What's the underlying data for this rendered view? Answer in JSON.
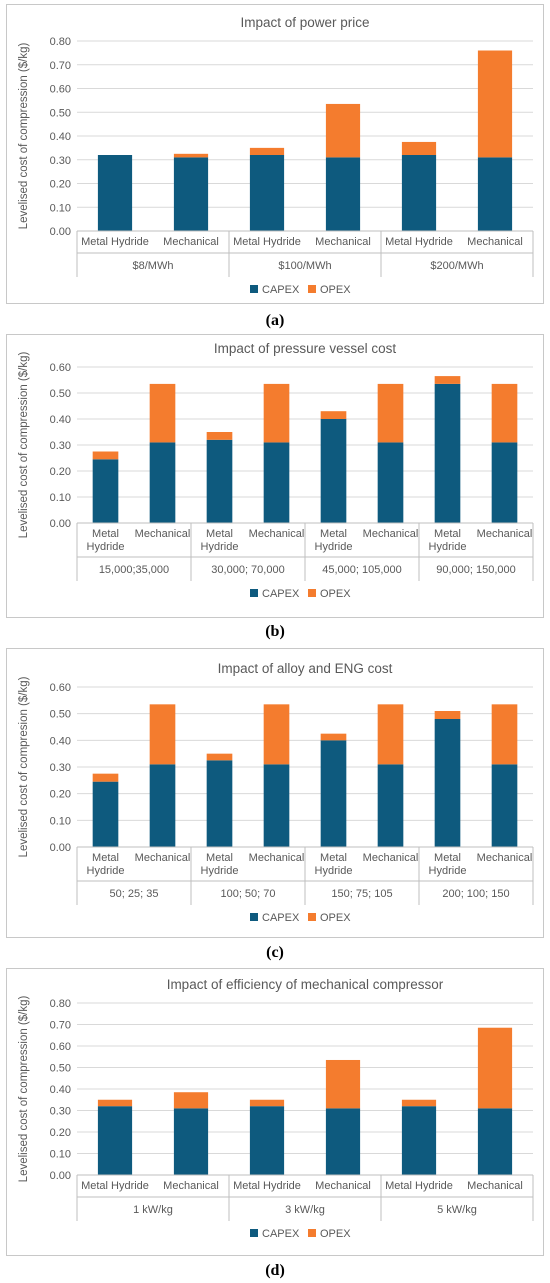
{
  "legend_labels": [
    "CAPEX",
    "OPEX"
  ],
  "colors": {
    "capex": "#0e5a7e",
    "opex": "#f47c2e",
    "axis_text": "#595959",
    "grid": "#d9d9d9"
  },
  "captions": [
    "(a)",
    "(b)",
    "(c)",
    "(d)"
  ],
  "chart_data": [
    {
      "type": "bar",
      "stacked": true,
      "title": "Impact of power price",
      "ylabel": "Levelised cost of compression ($/kg)",
      "ylim": [
        0,
        0.8
      ],
      "yticks": [
        "0.00",
        "0.10",
        "0.20",
        "0.30",
        "0.40",
        "0.50",
        "0.60",
        "0.70",
        "0.80"
      ],
      "groups": [
        "$8/MWh",
        "$100/MWh",
        "$200/MWh"
      ],
      "categories": [
        "Metal Hydride",
        "Mechanical",
        "Metal Hydride",
        "Mechanical",
        "Metal Hydride",
        "Mechanical"
      ],
      "series": [
        {
          "name": "CAPEX",
          "values": [
            0.32,
            0.31,
            0.32,
            0.31,
            0.32,
            0.31
          ]
        },
        {
          "name": "OPEX",
          "values": [
            0.0,
            0.015,
            0.03,
            0.225,
            0.055,
            0.45
          ]
        }
      ],
      "legend": "bottom",
      "grid": true
    },
    {
      "type": "bar",
      "stacked": true,
      "title": "Impact of pressure vessel cost",
      "ylabel": "Levelised cost of compression ($/kg)",
      "ylim": [
        0,
        0.6
      ],
      "yticks": [
        "0.00",
        "0.10",
        "0.20",
        "0.30",
        "0.40",
        "0.50",
        "0.60"
      ],
      "groups": [
        "15,000;35,000",
        "30,000; 70,000",
        "45,000; 105,000",
        "90,000; 150,000"
      ],
      "categories": [
        "Metal\nHydride",
        "Mechanical",
        "Metal\nHydride",
        "Mechanical",
        "Metal\nHydride",
        "Mechanical",
        "Metal\nHydride",
        "Mechanical"
      ],
      "series": [
        {
          "name": "CAPEX",
          "values": [
            0.245,
            0.31,
            0.32,
            0.31,
            0.4,
            0.31,
            0.535,
            0.31
          ]
        },
        {
          "name": "OPEX",
          "values": [
            0.03,
            0.225,
            0.03,
            0.225,
            0.03,
            0.225,
            0.03,
            0.225
          ]
        }
      ],
      "legend": "bottom",
      "grid": true
    },
    {
      "type": "bar",
      "stacked": true,
      "title": "Impact of alloy and ENG cost",
      "ylabel": "Levelised cost of compresion ($/kg)",
      "ylim": [
        0,
        0.6
      ],
      "yticks": [
        "0.00",
        "0.10",
        "0.20",
        "0.30",
        "0.40",
        "0.50",
        "0.60"
      ],
      "groups": [
        "50; 25; 35",
        "100; 50; 70",
        "150; 75; 105",
        "200; 100; 150"
      ],
      "categories": [
        "Metal\nHydride",
        "Mechanical",
        "Metal\nHydride",
        "Mechanical",
        "Metal\nHydride",
        "Mechanical",
        "Metal\nHydride",
        "Mechanical"
      ],
      "series": [
        {
          "name": "CAPEX",
          "values": [
            0.245,
            0.31,
            0.325,
            0.31,
            0.4,
            0.31,
            0.48,
            0.31
          ]
        },
        {
          "name": "OPEX",
          "values": [
            0.03,
            0.225,
            0.025,
            0.225,
            0.025,
            0.225,
            0.03,
            0.225
          ]
        }
      ],
      "legend": "bottom",
      "grid": true
    },
    {
      "type": "bar",
      "stacked": true,
      "title": "Impact of efficiency of mechanical compressor",
      "ylabel": "Levelised cost of compression ($/kg)",
      "ylim": [
        0,
        0.8
      ],
      "yticks": [
        "0.00",
        "0.10",
        "0.20",
        "0.30",
        "0.40",
        "0.50",
        "0.60",
        "0.70",
        "0.80"
      ],
      "groups": [
        "1 kW/kg",
        "3 kW/kg",
        "5 kW/kg"
      ],
      "categories": [
        "Metal Hydride",
        "Mechanical",
        "Metal Hydride",
        "Mechanical",
        "Metal Hydride",
        "Mechanical"
      ],
      "series": [
        {
          "name": "CAPEX",
          "values": [
            0.32,
            0.31,
            0.32,
            0.31,
            0.32,
            0.31
          ]
        },
        {
          "name": "OPEX",
          "values": [
            0.03,
            0.075,
            0.03,
            0.225,
            0.03,
            0.375
          ]
        }
      ],
      "legend": "bottom",
      "grid": true
    }
  ]
}
